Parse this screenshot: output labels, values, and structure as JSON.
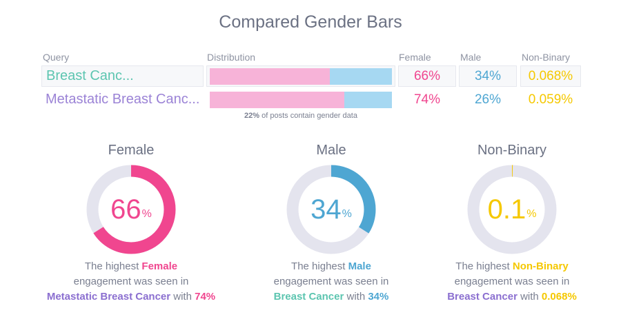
{
  "title": "Compared Gender Bars",
  "table": {
    "headers": {
      "query": "Query",
      "distribution": "Distribution",
      "female": "Female",
      "male": "Male",
      "nonbinary": "Non-Binary"
    },
    "rows": [
      {
        "query": "Breast Canc...",
        "female": "66%",
        "male": "34%",
        "nonbinary": "0.068%",
        "female_share": 66,
        "male_share": 34,
        "query_color": "#5cc5b0"
      },
      {
        "query": "Metastatic Breast Canc...",
        "female": "74%",
        "male": "26%",
        "nonbinary": "0.059%",
        "female_share": 74,
        "male_share": 26,
        "query_color": "#9b83d6"
      }
    ],
    "note_pct": "22%",
    "note_text": " of posts contain gender data"
  },
  "colors": {
    "female": "#f0468f",
    "male": "#4ea6d2",
    "nonbinary": "#f5c800",
    "ring": "#e4e4ee",
    "bar_female": "#f7b3d8",
    "bar_male": "#a6d8f2",
    "teal": "#5cc5b0",
    "purple": "#8b6fd0"
  },
  "gauges": [
    {
      "label": "Female",
      "value": "66",
      "unit": "%",
      "percent": 66,
      "color": "#f0468f",
      "t1": "The highest ",
      "hl": "Female",
      "t2": "engagement was seen in",
      "query": "Metastatic Breast Cancer",
      "query_color": "#8b6fd0",
      "with": " with ",
      "pct": "74%"
    },
    {
      "label": "Male",
      "value": "34",
      "unit": "%",
      "percent": 34,
      "color": "#4ea6d2",
      "t1": "The highest ",
      "hl": "Male",
      "t2": "engagement was seen in",
      "query": "Breast Cancer",
      "query_color": "#5cc5b0",
      "with": " with ",
      "pct": "34%"
    },
    {
      "label": "Non-Binary",
      "value": "0.1",
      "unit": "%",
      "percent": 0.1,
      "color": "#f5c800",
      "t1": "The highest ",
      "hl": "Non-Binary",
      "t2": "engagement was seen in",
      "query": "Breast Cancer",
      "query_color": "#8b6fd0",
      "with": " with ",
      "pct": "0.068%"
    }
  ]
}
